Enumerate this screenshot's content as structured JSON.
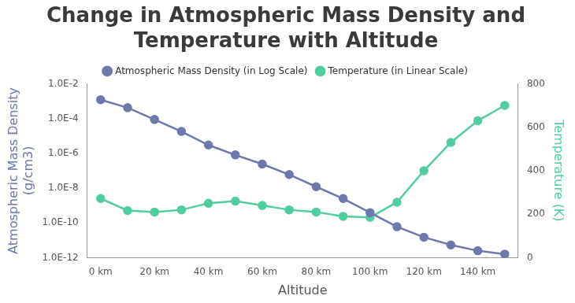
{
  "chart_data": {
    "type": "line",
    "title": [
      "Change in Atmospheric Mass Density and",
      "Temperature with Altitude"
    ],
    "x_label": "Altitude",
    "y_label": [
      "Atmospheric Mass Density",
      "(g/cm3)"
    ],
    "y2_label": "Temperature (K)",
    "x": [
      0,
      10,
      20,
      30,
      40,
      50,
      60,
      70,
      80,
      90,
      100,
      110,
      120,
      130,
      140,
      150
    ],
    "xlim": [
      -5,
      155
    ],
    "xticks": [
      {
        "value": 0,
        "label": "0 km"
      },
      {
        "value": 20,
        "label": "20 km"
      },
      {
        "value": 40,
        "label": "40 km"
      },
      {
        "value": 60,
        "label": "60 km"
      },
      {
        "value": 80,
        "label": "80 km"
      },
      {
        "value": 100,
        "label": "100 km"
      },
      {
        "value": 120,
        "label": "120 km"
      },
      {
        "value": 140,
        "label": "140 km"
      }
    ],
    "log": "y",
    "ylim": [
      1e-12,
      0.01
    ],
    "yticks": [
      {
        "value": 1e-12,
        "label": "1.0E-12"
      },
      {
        "value": 1e-10,
        "label": "1.0E-10"
      },
      {
        "value": 1e-08,
        "label": "1.0E-8"
      },
      {
        "value": 1e-06,
        "label": "1.0E-6"
      },
      {
        "value": 0.0001,
        "label": "1.0E-4"
      },
      {
        "value": 0.01,
        "label": "1.0E-2"
      }
    ],
    "y2lim": [
      0,
      800
    ],
    "y2ticks": [
      0,
      200,
      400,
      600,
      800
    ],
    "grid": false,
    "legend": "top",
    "series": [
      {
        "name": "Atmospheric Mass Density (in Log Scale)",
        "color": "#6d78ad",
        "marker": "circle",
        "values": [
          0.0012,
          0.00042,
          8.8e-05,
          1.8e-05,
          3e-06,
          8.1e-07,
          2.4e-07,
          6e-08,
          1.2e-08,
          2.5e-09,
          3.9e-10,
          6e-11,
          1.5e-11,
          5.4e-12,
          2.5e-12,
          1.6e-12
        ]
      },
      {
        "name": "Temperature (in Linear Scale)",
        "color": "#51cda0",
        "marker": "circle",
        "axis": "y2",
        "values": [
          272,
          217,
          210,
          220,
          250,
          260,
          240,
          220,
          210,
          190,
          185,
          255,
          400,
          530,
          630,
          700
        ]
      }
    ]
  }
}
